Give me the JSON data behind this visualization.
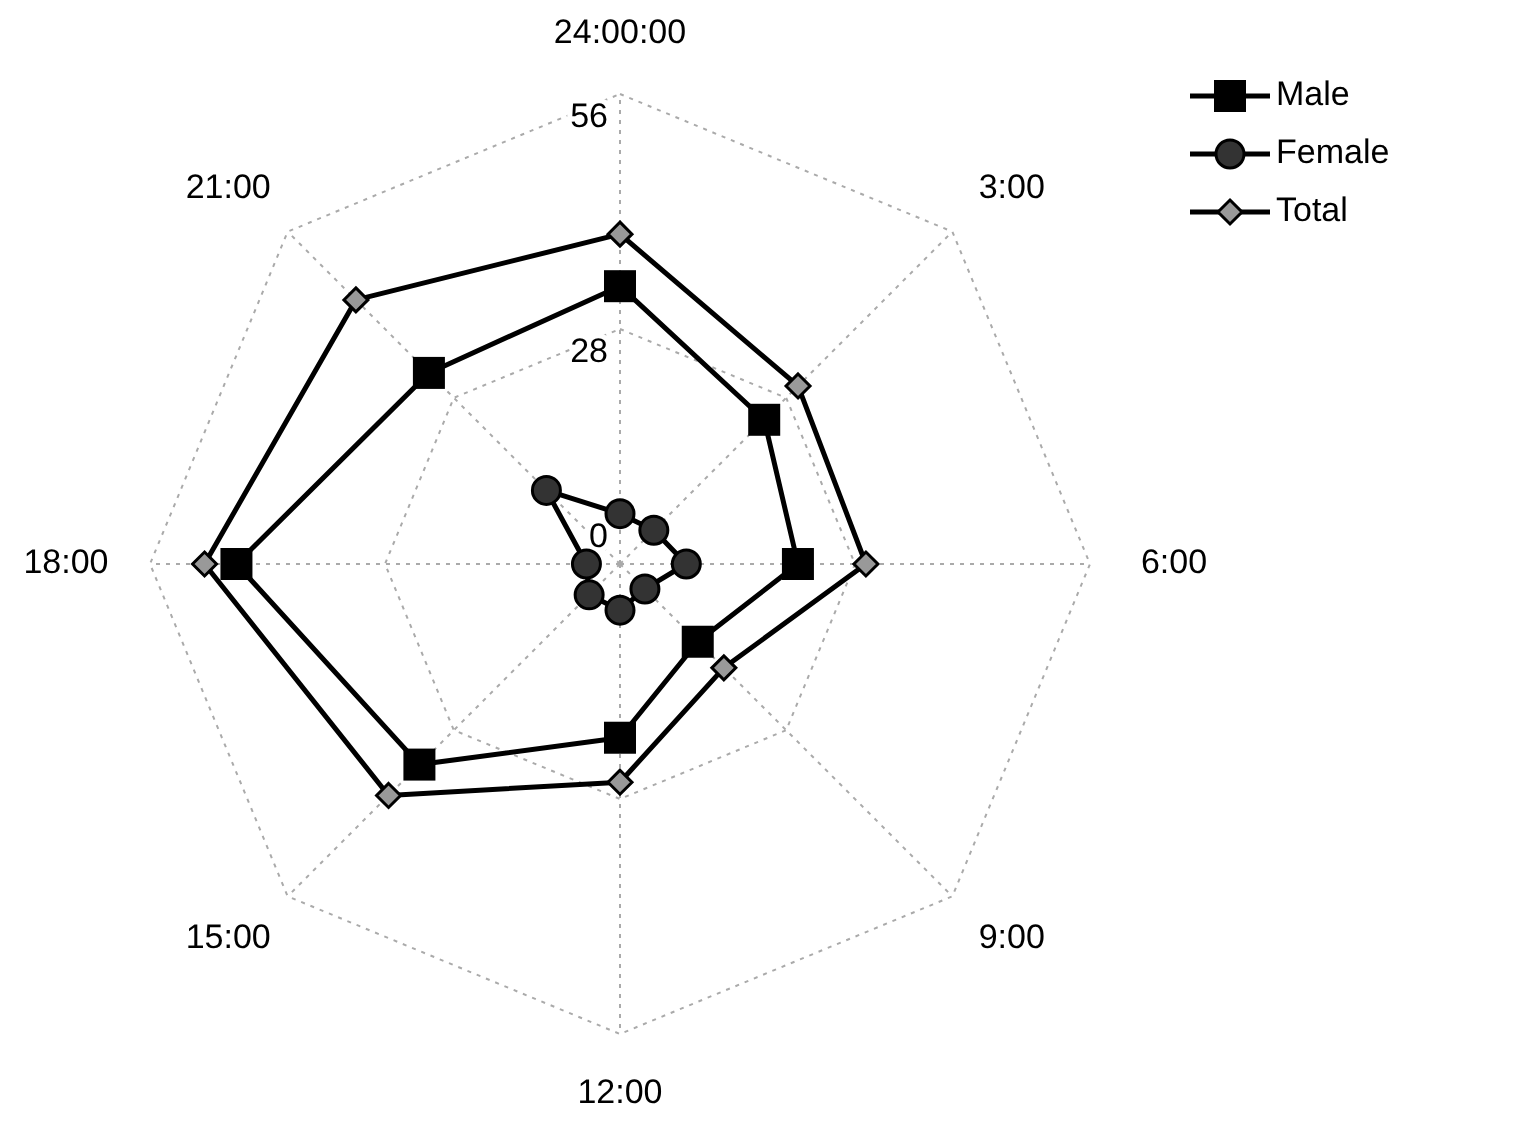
{
  "chart_data": {
    "type": "radar",
    "categories": [
      "24:00:00",
      "3:00",
      "6:00",
      "9:00",
      "12:00",
      "15:00",
      "18:00",
      "21:00"
    ],
    "ylim": [
      0,
      56
    ],
    "yticks": [
      0,
      28,
      56
    ],
    "grid": true,
    "legend": "top right",
    "series": [
      {
        "name": "Male",
        "color": "#000000",
        "marker": "square",
        "values": [
          33.1,
          24.3,
          21.2,
          13.1,
          20.7,
          33.8,
          45.7,
          32.2
        ]
      },
      {
        "name": "Female",
        "color": "#000000",
        "marker": "circle",
        "values": [
          6,
          5.7,
          7.9,
          4.2,
          5.5,
          5.2,
          4,
          12.4
        ]
      },
      {
        "name": "Total",
        "color": "#000000",
        "marker": "diamond",
        "values": [
          39.3,
          30,
          29.3,
          17.5,
          26,
          39,
          49.5,
          44.5
        ]
      }
    ]
  }
}
